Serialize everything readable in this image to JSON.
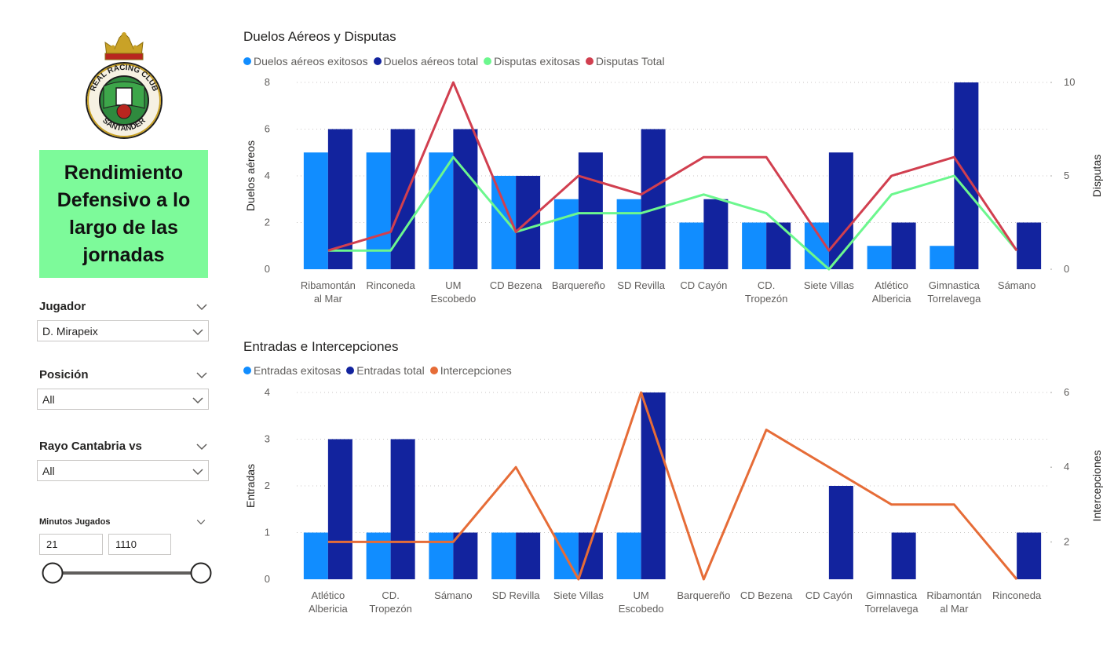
{
  "sidebar": {
    "logo": {
      "top_text": "REAL RACING CLUB",
      "bottom_text": "SANTANDER"
    },
    "title": "Rendimiento Defensivo a lo largo de las jornadas",
    "jugador": {
      "label": "Jugador",
      "value": "D. Mirapeix"
    },
    "posicion": {
      "label": "Posición",
      "value": "All"
    },
    "rival": {
      "label": "Rayo Cantabria vs",
      "value": "All"
    },
    "minutos": {
      "label": "Minutos Jugados",
      "min": "21",
      "max": "1110"
    }
  },
  "colors": {
    "light_blue": "#118dff",
    "dark_blue": "#12239e",
    "green": "#6cf78e",
    "red": "#d13f4f",
    "orange": "#e66c37",
    "title_bg": "#7dfa9a"
  },
  "chart_data": [
    {
      "type": "bar",
      "title": "Duelos Aéreos y Disputas",
      "categories": [
        "Ribamontán al Mar",
        "Rinconeda",
        "UM Escobedo",
        "CD Bezena",
        "Barquereño",
        "SD Revilla",
        "CD Cayón",
        "CD. Tropezón",
        "Siete Villas",
        "Atlético Albericia",
        "Gimnastica Torrelavega",
        "Sámano"
      ],
      "category_lines": [
        [
          "Ribamontán",
          "al Mar"
        ],
        [
          "Rinconeda"
        ],
        [
          "UM",
          "Escobedo"
        ],
        [
          "CD Bezena"
        ],
        [
          "Barquereño"
        ],
        [
          "SD Revilla"
        ],
        [
          "CD Cayón"
        ],
        [
          "CD.",
          "Tropezón"
        ],
        [
          "Siete Villas"
        ],
        [
          "Atlético",
          "Albericia"
        ],
        [
          "Gimnastica",
          "Torrelavega"
        ],
        [
          "Sámano"
        ]
      ],
      "series": [
        {
          "name": "Duelos aéreos exitosos",
          "kind": "bar",
          "axis": "left",
          "values": [
            5,
            5,
            5,
            4,
            3,
            3,
            2,
            2,
            2,
            1,
            1,
            null
          ]
        },
        {
          "name": "Duelos aéreos total",
          "kind": "bar",
          "axis": "left",
          "values": [
            6,
            6,
            6,
            4,
            5,
            6,
            3,
            2,
            5,
            2,
            8,
            2
          ]
        },
        {
          "name": "Disputas exitosas",
          "kind": "line",
          "axis": "right",
          "values": [
            1,
            1,
            6,
            2,
            3,
            3,
            4,
            3,
            0,
            4,
            5,
            1
          ]
        },
        {
          "name": "Disputas Total",
          "kind": "line",
          "axis": "right",
          "values": [
            1,
            2,
            10,
            2,
            5,
            4,
            6,
            6,
            1,
            5,
            6,
            1
          ]
        }
      ],
      "ylabel": "Duelos aéreos",
      "y2label": "Disputas",
      "ylim": [
        0,
        8
      ],
      "y2lim": [
        0,
        10
      ],
      "yticks": [
        0,
        2,
        4,
        6,
        8
      ],
      "y2ticks": [
        0,
        5,
        10
      ],
      "grid": true,
      "legend": "top-left"
    },
    {
      "type": "bar",
      "title": "Entradas e Intercepciones",
      "categories": [
        "Atlético Albericia",
        "CD. Tropezón",
        "Sámano",
        "SD Revilla",
        "Siete Villas",
        "UM Escobedo",
        "Barquereño",
        "CD Bezena",
        "CD Cayón",
        "Gimnastica Torrelavega",
        "Ribamontán al Mar",
        "Rinconeda"
      ],
      "category_lines": [
        [
          "Atlético",
          "Albericia"
        ],
        [
          "CD.",
          "Tropezón"
        ],
        [
          "Sámano"
        ],
        [
          "SD Revilla"
        ],
        [
          "Siete Villas"
        ],
        [
          "UM",
          "Escobedo"
        ],
        [
          "Barquereño"
        ],
        [
          "CD Bezena"
        ],
        [
          "CD Cayón"
        ],
        [
          "Gimnastica",
          "Torrelavega"
        ],
        [
          "Ribamontán",
          "al Mar"
        ],
        [
          "Rinconeda"
        ]
      ],
      "series": [
        {
          "name": "Entradas exitosas",
          "kind": "bar",
          "axis": "left",
          "values": [
            1,
            1,
            1,
            1,
            1,
            1,
            null,
            null,
            null,
            null,
            null,
            null
          ]
        },
        {
          "name": "Entradas total",
          "kind": "bar",
          "axis": "left",
          "values": [
            3,
            3,
            1,
            1,
            1,
            4,
            null,
            null,
            2,
            1,
            null,
            1
          ]
        },
        {
          "name": "Intercepciones",
          "kind": "line",
          "axis": "right",
          "values": [
            2,
            2,
            2,
            4,
            1,
            6,
            1,
            5,
            null,
            3,
            3,
            1
          ]
        }
      ],
      "ylabel": "Entradas",
      "y2label": "Intercepciones",
      "ylim": [
        0,
        4
      ],
      "y2lim": [
        1,
        6
      ],
      "yticks": [
        0,
        1,
        2,
        3,
        4
      ],
      "y2ticks": [
        2,
        4,
        6
      ],
      "grid": true,
      "legend": "top-left"
    }
  ]
}
